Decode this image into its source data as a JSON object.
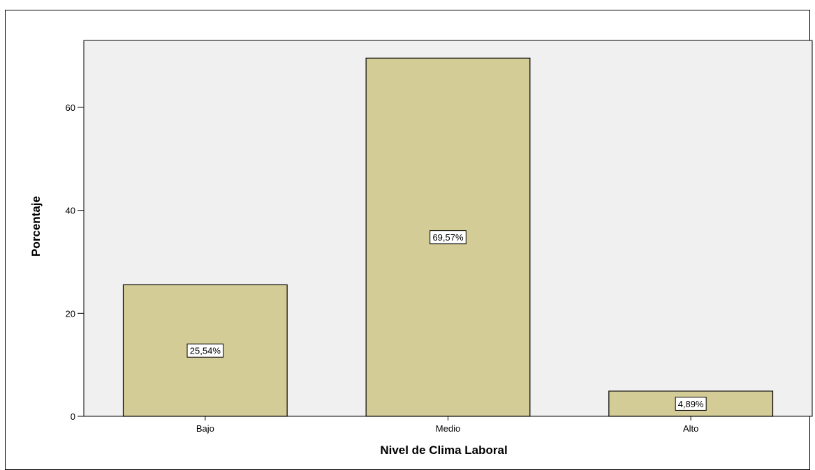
{
  "chart_data": {
    "type": "bar",
    "categories": [
      "Bajo",
      "Medio",
      "Alto"
    ],
    "values": [
      25.54,
      69.57,
      4.89
    ],
    "data_labels": [
      "25,54%",
      "69,57%",
      "4,89%"
    ],
    "title": "",
    "xlabel": "Nivel de Clima Laboral",
    "ylabel": "Porcentaje",
    "ylim": [
      0,
      73
    ],
    "yticks": [
      0,
      20,
      40,
      60
    ],
    "ytick_labels": [
      "0",
      "20",
      "40",
      "60"
    ],
    "grid": false,
    "bar_color": "#d4cc97",
    "plot_background": "#f0f0f0"
  }
}
